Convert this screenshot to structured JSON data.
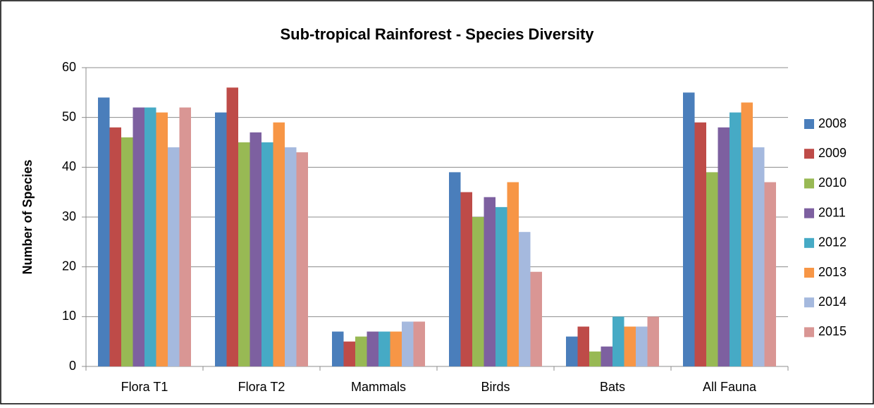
{
  "chart_data": {
    "type": "bar",
    "title": "Sub-tropical Rainforest  - Species Diversity",
    "y_label": "Number of Species",
    "categories": [
      "Flora T1",
      "Flora T2",
      "Mammals",
      "Birds",
      "Bats",
      "All Fauna"
    ],
    "series": [
      {
        "name": "2008",
        "color": "#4a7ebb",
        "values": [
          54,
          51,
          7,
          39,
          6,
          55
        ]
      },
      {
        "name": "2009",
        "color": "#be4b48",
        "values": [
          48,
          56,
          5,
          35,
          8,
          49
        ]
      },
      {
        "name": "2010",
        "color": "#98b954",
        "values": [
          46,
          45,
          6,
          30,
          3,
          39
        ]
      },
      {
        "name": "2011",
        "color": "#7d60a0",
        "values": [
          52,
          47,
          7,
          34,
          4,
          48
        ]
      },
      {
        "name": "2012",
        "color": "#46aac5",
        "values": [
          52,
          45,
          7,
          32,
          10,
          51
        ]
      },
      {
        "name": "2013",
        "color": "#f79646",
        "values": [
          51,
          49,
          7,
          37,
          8,
          53
        ]
      },
      {
        "name": "2014",
        "color": "#a5b9de",
        "values": [
          44,
          44,
          9,
          27,
          8,
          44
        ]
      },
      {
        "name": "2015",
        "color": "#d99694",
        "values": [
          52,
          43,
          9,
          19,
          10,
          37
        ]
      }
    ],
    "ylim": [
      0,
      60
    ],
    "yticks": [
      0,
      10,
      20,
      30,
      40,
      50,
      60
    ],
    "grid": true,
    "legend": "right"
  }
}
